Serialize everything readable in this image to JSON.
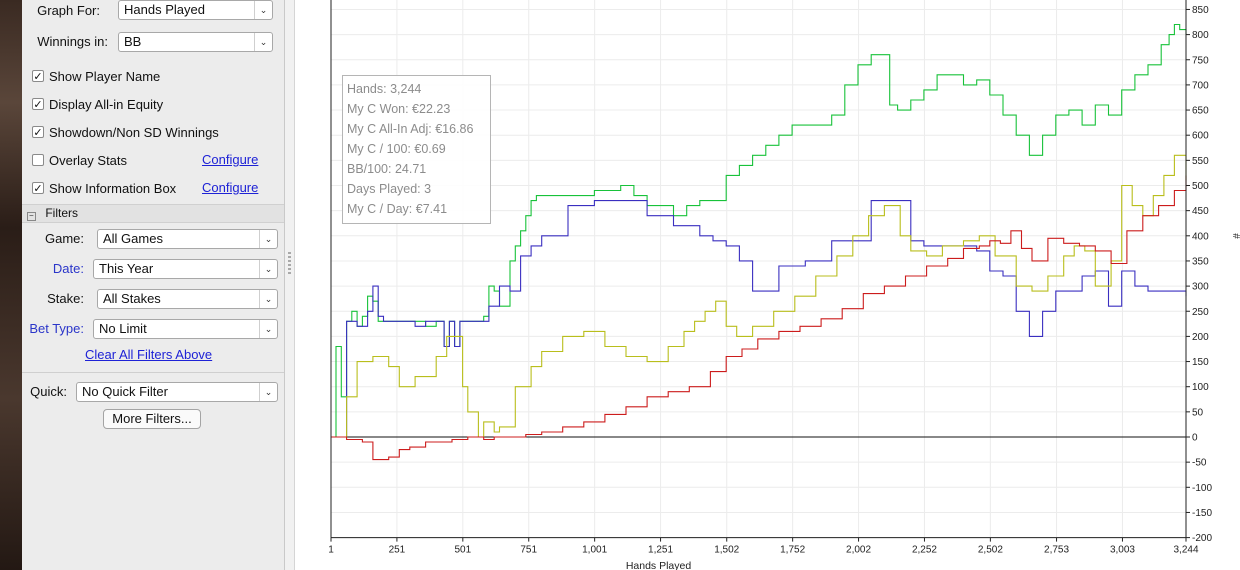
{
  "sidebar": {
    "graph_for": {
      "label": "Graph For:",
      "value": "Hands Played"
    },
    "winnings_in": {
      "label": "Winnings in:",
      "value": "BB"
    },
    "checkboxes": [
      {
        "label": "Show Player Name",
        "checked": true
      },
      {
        "label": "Display All-in Equity",
        "checked": true
      },
      {
        "label": "Showdown/Non SD Winnings",
        "checked": true
      },
      {
        "label": "Overlay Stats",
        "checked": false,
        "link": "Configure"
      },
      {
        "label": "Show Information Box",
        "checked": true,
        "link": "Configure"
      }
    ],
    "filters_header": "Filters",
    "filters": [
      {
        "label": "Game:",
        "value": "All Games"
      },
      {
        "label": "Date:",
        "value": "This Year"
      },
      {
        "label": "Stake:",
        "value": "All Stakes"
      },
      {
        "label": "Bet Type:",
        "value": "No Limit"
      }
    ],
    "clear_filters": "Clear All Filters Above",
    "quick": {
      "label": "Quick:",
      "value": "No Quick Filter"
    },
    "more_filters": "More Filters..."
  },
  "info_box": [
    "Hands: 3,244",
    "My C Won: €22.23",
    "My C All-In Adj: €16.86",
    "My C / 100: €0.69",
    "BB/100: 24.71",
    "Days Played: 3",
    "My C / Day: €7.41"
  ],
  "chart_data": {
    "type": "line",
    "xlabel": "Hands Played",
    "ylabel": "#",
    "xlim": [
      1,
      3244
    ],
    "ylim": [
      -200,
      870
    ],
    "x_ticks": [
      "1",
      "251",
      "501",
      "751",
      "1,001",
      "1,251",
      "1,502",
      "1,752",
      "2,002",
      "2,252",
      "2,502",
      "2,753",
      "3,003",
      "3,244"
    ],
    "y_ticks": [
      850,
      800,
      750,
      700,
      650,
      600,
      550,
      500,
      450,
      400,
      350,
      300,
      250,
      200,
      150,
      100,
      50,
      0,
      -50,
      -100,
      -150,
      -200
    ],
    "grid": true,
    "series": [
      {
        "color": "#18c23a",
        "x": [
          1,
          20,
          40,
          60,
          80,
          100,
          120,
          140,
          160,
          180,
          200,
          260,
          320,
          360,
          400,
          430,
          450,
          470,
          490,
          520,
          540,
          560,
          580,
          600,
          620,
          640,
          660,
          680,
          700,
          720,
          740,
          760,
          780,
          800,
          900,
          1000,
          1100,
          1150,
          1200,
          1300,
          1350,
          1400,
          1450,
          1500,
          1550,
          1600,
          1650,
          1700,
          1750,
          1800,
          1850,
          1900,
          1950,
          2000,
          2050,
          2080,
          2100,
          2120,
          2150,
          2200,
          2250,
          2300,
          2350,
          2400,
          2450,
          2500,
          2550,
          2600,
          2650,
          2700,
          2750,
          2800,
          2850,
          2900,
          2950,
          3000,
          3050,
          3100,
          3150,
          3180,
          3200,
          3220,
          3244
        ],
        "y": [
          0,
          180,
          80,
          230,
          250,
          220,
          240,
          280,
          270,
          230,
          230,
          230,
          230,
          220,
          230,
          180,
          230,
          180,
          230,
          230,
          230,
          230,
          240,
          300,
          290,
          260,
          260,
          350,
          380,
          410,
          440,
          470,
          480,
          480,
          480,
          490,
          500,
          480,
          460,
          440,
          460,
          470,
          470,
          520,
          540,
          560,
          580,
          600,
          620,
          620,
          620,
          640,
          700,
          740,
          760,
          760,
          760,
          660,
          650,
          670,
          690,
          720,
          720,
          700,
          710,
          680,
          640,
          600,
          560,
          600,
          640,
          650,
          620,
          660,
          640,
          690,
          720,
          740,
          780,
          800,
          820,
          810,
          800
        ]
      },
      {
        "color": "#3a2fc0",
        "x": [
          1,
          60,
          100,
          140,
          160,
          180,
          200,
          260,
          320,
          360,
          400,
          430,
          450,
          470,
          490,
          520,
          540,
          560,
          600,
          640,
          680,
          720,
          760,
          800,
          900,
          1000,
          1100,
          1200,
          1300,
          1400,
          1450,
          1500,
          1550,
          1600,
          1700,
          1800,
          1900,
          1950,
          2000,
          2050,
          2100,
          2150,
          2200,
          2250,
          2300,
          2400,
          2450,
          2500,
          2550,
          2600,
          2650,
          2700,
          2750,
          2800,
          2850,
          2900,
          2950,
          3000,
          3050,
          3100,
          3150,
          3200,
          3244
        ],
        "y": [
          0,
          230,
          220,
          250,
          300,
          240,
          230,
          230,
          220,
          230,
          230,
          180,
          230,
          180,
          230,
          230,
          230,
          230,
          260,
          300,
          290,
          360,
          380,
          400,
          460,
          470,
          470,
          440,
          420,
          400,
          390,
          380,
          350,
          290,
          340,
          350,
          390,
          390,
          390,
          470,
          470,
          470,
          390,
          380,
          380,
          380,
          370,
          330,
          320,
          250,
          200,
          250,
          290,
          290,
          320,
          330,
          260,
          330,
          300,
          290,
          290,
          290,
          280
        ]
      },
      {
        "color": "#b9be1c",
        "x": [
          1,
          60,
          100,
          160,
          220,
          260,
          320,
          400,
          440,
          470,
          500,
          520,
          560,
          580,
          600,
          620,
          640,
          700,
          760,
          800,
          880,
          960,
          1040,
          1120,
          1200,
          1280,
          1340,
          1380,
          1420,
          1460,
          1500,
          1540,
          1600,
          1680,
          1760,
          1840,
          1920,
          1980,
          2040,
          2100,
          2160,
          2200,
          2260,
          2320,
          2400,
          2460,
          2520,
          2600,
          2660,
          2720,
          2780,
          2820,
          2860,
          2900,
          2960,
          3000,
          3040,
          3080,
          3120,
          3160,
          3200,
          3244
        ],
        "y": [
          0,
          80,
          150,
          160,
          140,
          100,
          120,
          160,
          200,
          200,
          100,
          50,
          0,
          30,
          30,
          10,
          20,
          100,
          140,
          170,
          200,
          210,
          180,
          160,
          150,
          180,
          210,
          230,
          250,
          270,
          220,
          200,
          220,
          250,
          280,
          320,
          360,
          400,
          440,
          460,
          400,
          370,
          360,
          380,
          390,
          400,
          360,
          300,
          290,
          320,
          360,
          380,
          370,
          300,
          350,
          500,
          460,
          440,
          480,
          520,
          560,
          510
        ]
      },
      {
        "color": "#cc1c1c",
        "x": [
          1,
          60,
          120,
          160,
          220,
          260,
          300,
          360,
          420,
          460,
          520,
          580,
          620,
          680,
          740,
          800,
          880,
          960,
          1040,
          1120,
          1200,
          1280,
          1360,
          1440,
          1500,
          1560,
          1620,
          1700,
          1780,
          1860,
          1940,
          2020,
          2100,
          2180,
          2260,
          2340,
          2400,
          2460,
          2500,
          2540,
          2580,
          2620,
          2660,
          2720,
          2780,
          2840,
          2900,
          2960,
          3020,
          3080,
          3140,
          3200,
          3244
        ],
        "y": [
          0,
          -5,
          -10,
          -45,
          -40,
          -25,
          -20,
          -10,
          -10,
          -5,
          0,
          -5,
          0,
          0,
          5,
          10,
          20,
          30,
          45,
          60,
          80,
          90,
          100,
          130,
          160,
          175,
          195,
          210,
          220,
          235,
          255,
          285,
          300,
          320,
          340,
          355,
          375,
          380,
          390,
          385,
          410,
          375,
          350,
          395,
          385,
          380,
          370,
          345,
          410,
          440,
          460,
          490,
          520
        ]
      }
    ]
  }
}
